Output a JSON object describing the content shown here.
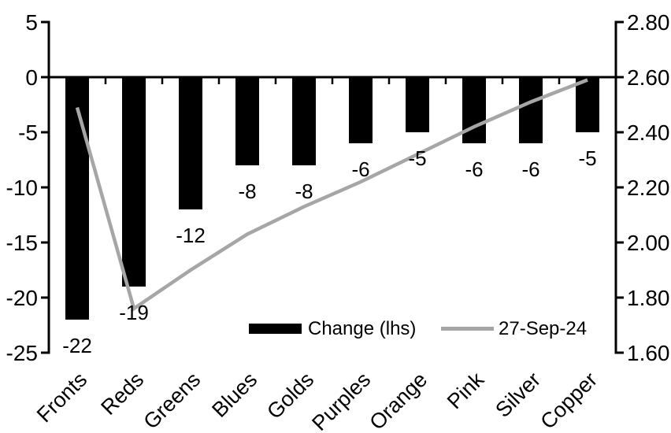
{
  "chart_data": {
    "type": "combo",
    "title": "",
    "categories": [
      "Fronts",
      "Reds",
      "Greens",
      "Blues",
      "Golds",
      "Purples",
      "Orange",
      "Pink",
      "Silver",
      "Copper"
    ],
    "series": [
      {
        "name": "Change (lhs)",
        "type": "bar",
        "axis": "left",
        "color": "#000000",
        "values": [
          -22,
          -19,
          -12,
          -8,
          -8,
          -6,
          -5,
          -6,
          -6,
          -5
        ],
        "data_labels": [
          "-22",
          "-19",
          "-12",
          "-8",
          "-8",
          "-6",
          "-5",
          "-6",
          "-6",
          "-5"
        ]
      },
      {
        "name": "27-Sep-24",
        "type": "line",
        "axis": "right",
        "color": "#a6a6a6",
        "values": [
          2.49,
          1.76,
          1.9,
          2.03,
          2.13,
          2.22,
          2.32,
          2.42,
          2.51,
          2.59
        ]
      }
    ],
    "left_axis": {
      "min": -25,
      "max": 5,
      "step": 5,
      "tick_labels": [
        "5",
        "0",
        "-5",
        "-10",
        "-15",
        "-20",
        "-25"
      ]
    },
    "right_axis": {
      "min": 1.6,
      "max": 2.8,
      "step": 0.2,
      "tick_labels": [
        "2.80",
        "2.60",
        "2.40",
        "2.20",
        "2.00",
        "1.80",
        "1.60"
      ]
    },
    "legend": {
      "position": "bottom-inside",
      "entries": [
        {
          "label": "Change (lhs)",
          "swatch": "bar",
          "color": "#000000"
        },
        {
          "label": "27-Sep-24",
          "swatch": "line",
          "color": "#a6a6a6"
        }
      ]
    },
    "grid": false,
    "axis_color": "#000000",
    "background": "#ffffff"
  }
}
